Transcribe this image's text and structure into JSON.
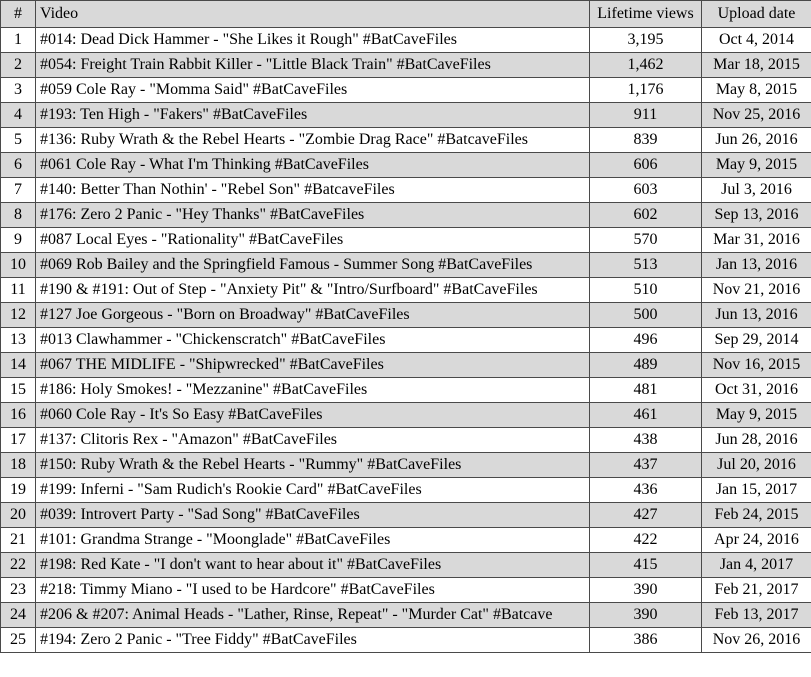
{
  "table": {
    "columns": [
      "#",
      "Video",
      "Lifetime views",
      "Upload date"
    ],
    "rows": [
      {
        "num": "1",
        "video": "#014: Dead Dick Hammer - \"She Likes it Rough\" #BatCaveFiles",
        "views": "3,195",
        "date": "Oct 4, 2014"
      },
      {
        "num": "2",
        "video": "#054: Freight Train Rabbit Killer - \"Little Black Train\" #BatCaveFiles",
        "views": "1,462",
        "date": "Mar 18, 2015"
      },
      {
        "num": "3",
        "video": "#059 Cole Ray - \"Momma Said\" #BatCaveFiles",
        "views": "1,176",
        "date": "May 8, 2015"
      },
      {
        "num": "4",
        "video": "#193: Ten High - \"Fakers\" #BatCaveFiles",
        "views": "911",
        "date": "Nov 25, 2016"
      },
      {
        "num": "5",
        "video": "#136: Ruby Wrath & the Rebel Hearts - \"Zombie Drag Race\" #BatcaveFiles",
        "views": "839",
        "date": "Jun 26, 2016"
      },
      {
        "num": "6",
        "video": "#061 Cole Ray - What I'm Thinking #BatCaveFiles",
        "views": "606",
        "date": "May 9, 2015"
      },
      {
        "num": "7",
        "video": "#140: Better Than Nothin' - \"Rebel Son\" #BatcaveFiles",
        "views": "603",
        "date": "Jul 3, 2016"
      },
      {
        "num": "8",
        "video": "#176: Zero 2 Panic - \"Hey Thanks\" #BatCaveFiles",
        "views": "602",
        "date": "Sep 13, 2016"
      },
      {
        "num": "9",
        "video": "#087 Local Eyes - \"Rationality\" #BatCaveFiles",
        "views": "570",
        "date": "Mar 31, 2016"
      },
      {
        "num": "10",
        "video": "#069 Rob Bailey and the Springfield Famous - Summer Song #BatCaveFiles",
        "views": "513",
        "date": "Jan 13, 2016"
      },
      {
        "num": "11",
        "video": "#190 & #191: Out of Step - \"Anxiety Pit\" & \"Intro/Surfboard\" #BatCaveFiles",
        "views": "510",
        "date": "Nov 21, 2016"
      },
      {
        "num": "12",
        "video": "#127 Joe Gorgeous - \"Born on Broadway\" #BatCaveFiles",
        "views": "500",
        "date": "Jun 13, 2016"
      },
      {
        "num": "13",
        "video": "#013 Clawhammer - \"Chickenscratch\" #BatCaveFiles",
        "views": "496",
        "date": "Sep 29, 2014"
      },
      {
        "num": "14",
        "video": "#067 THE MIDLIFE - \"Shipwrecked\" #BatCaveFiles",
        "views": "489",
        "date": "Nov 16, 2015"
      },
      {
        "num": "15",
        "video": "#186: Holy Smokes! - \"Mezzanine\" #BatCaveFiles",
        "views": "481",
        "date": "Oct 31, 2016"
      },
      {
        "num": "16",
        "video": "#060 Cole Ray - It's So Easy #BatCaveFiles",
        "views": "461",
        "date": "May 9, 2015"
      },
      {
        "num": "17",
        "video": "#137: Clitoris Rex - \"Amazon\" #BatCaveFiles",
        "views": "438",
        "date": "Jun 28, 2016"
      },
      {
        "num": "18",
        "video": "#150: Ruby Wrath & the Rebel Hearts - \"Rummy\" #BatCaveFiles",
        "views": "437",
        "date": "Jul 20, 2016"
      },
      {
        "num": "19",
        "video": "#199: Inferni - \"Sam Rudich's Rookie Card\" #BatCaveFiles",
        "views": "436",
        "date": "Jan 15, 2017"
      },
      {
        "num": "20",
        "video": "#039: Introvert Party - \"Sad Song\" #BatCaveFiles",
        "views": "427",
        "date": "Feb 24, 2015"
      },
      {
        "num": "21",
        "video": "#101: Grandma Strange - \"Moonglade\" #BatCaveFiles",
        "views": "422",
        "date": "Apr 24, 2016"
      },
      {
        "num": "22",
        "video": "#198: Red Kate - \"I don't want to hear about it\" #BatCaveFiles",
        "views": "415",
        "date": "Jan 4, 2017"
      },
      {
        "num": "23",
        "video": "#218: Timmy Miano - \"I used to be Hardcore\" #BatCaveFiles",
        "views": "390",
        "date": "Feb 21, 2017"
      },
      {
        "num": "24",
        "video": "#206 & #207: Animal Heads - \"Lather, Rinse, Repeat\" - \"Murder Cat\" #Batcave",
        "views": "390",
        "date": "Feb 13, 2017"
      },
      {
        "num": "25",
        "video": "#194: Zero 2 Panic - \"Tree Fiddy\" #BatCaveFiles",
        "views": "386",
        "date": "Nov 26, 2016"
      }
    ]
  }
}
